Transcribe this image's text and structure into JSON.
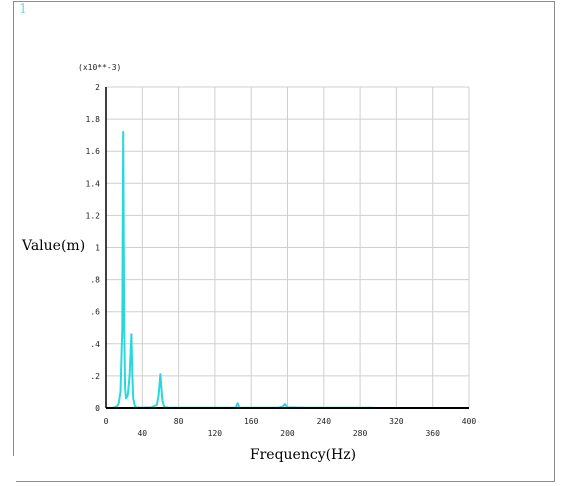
{
  "window": {
    "corner_label": "1"
  },
  "chart_data": {
    "type": "line",
    "title": "",
    "xlabel": "Frequency(Hz)",
    "ylabel": "Value(m)",
    "y_multiplier_label": "(x10**-3)",
    "xlim": [
      0,
      400
    ],
    "ylim": [
      0,
      2
    ],
    "x_ticks": [
      0,
      40,
      80,
      120,
      160,
      200,
      240,
      280,
      320,
      360,
      400
    ],
    "x_tick_labels": [
      "0",
      "40",
      "80",
      "120",
      "160",
      "200",
      "240",
      "280",
      "320",
      "360",
      "400"
    ],
    "y_ticks": [
      0,
      0.2,
      0.4,
      0.6,
      0.8,
      1,
      1.2,
      1.4,
      1.6,
      1.8,
      2
    ],
    "y_tick_labels": [
      "0",
      ".2",
      ".4",
      ".6",
      ".8",
      "1",
      "1.2",
      "1.4",
      "1.6",
      "1.8",
      "2"
    ],
    "grid": true,
    "colors": {
      "series": "#2ad8dc",
      "grid": "#cfcfcf",
      "axis": "#000000"
    },
    "series": [
      {
        "x": [
          0,
          8,
          12,
          14,
          16,
          18,
          19,
          20,
          21,
          22,
          24,
          26,
          28,
          29,
          30,
          32,
          34,
          40,
          50,
          56,
          58,
          60,
          62,
          64,
          70,
          80,
          100,
          130,
          143,
          145,
          147,
          150,
          180,
          190,
          195,
          197,
          200,
          220,
          260,
          290,
          300
        ],
        "y": [
          0,
          0.002,
          0.01,
          0.03,
          0.1,
          0.5,
          1.72,
          0.5,
          0.12,
          0.06,
          0.08,
          0.2,
          0.46,
          0.22,
          0.06,
          0.01,
          0.003,
          0.002,
          0.004,
          0.02,
          0.08,
          0.21,
          0.05,
          0.006,
          0.002,
          0.001,
          0.001,
          0.001,
          0.002,
          0.03,
          0.002,
          0.001,
          0.001,
          0.002,
          0.01,
          0.025,
          0.004,
          0.001,
          0.001,
          0.001,
          0
        ]
      }
    ]
  }
}
